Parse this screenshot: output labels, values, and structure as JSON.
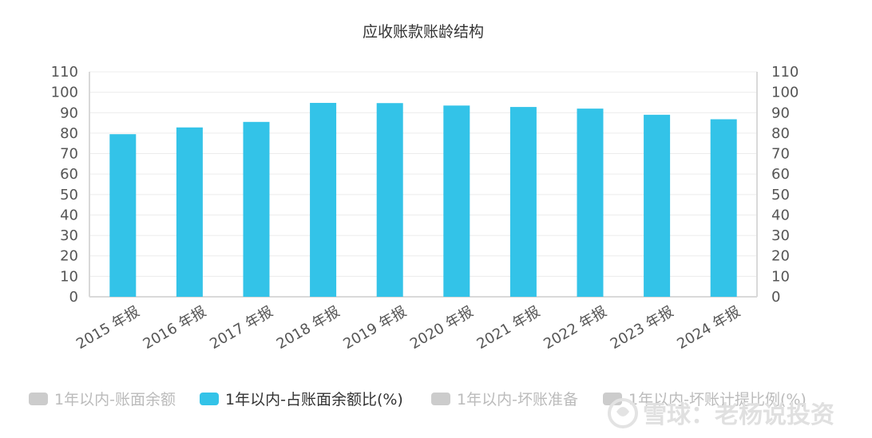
{
  "chart_data": {
    "type": "bar",
    "title": "应收账款账龄结构",
    "categories": [
      "2015 年报",
      "2016 年报",
      "2017 年报",
      "2018 年报",
      "2019 年报",
      "2020 年报",
      "2021 年报",
      "2022 年报",
      "2023 年报",
      "2024 年报"
    ],
    "series": [
      {
        "name": "1年以内-占账面余额比(%)",
        "values": [
          79.5,
          82.8,
          85.5,
          94.8,
          94.7,
          93.5,
          92.8,
          92.0,
          89.0,
          86.8
        ]
      }
    ],
    "ylim": [
      0,
      110
    ],
    "yticks": [
      "0",
      "10",
      "20",
      "30",
      "40",
      "50",
      "60",
      "70",
      "80",
      "90",
      "100",
      "110"
    ],
    "grid": true,
    "legend_position": "bottom",
    "colors": {
      "bar": "#33c3e8",
      "axis": "#d9d9d9",
      "grid": "#ececec",
      "legend_inactive": "#cccccc",
      "legend_active_text": "#333333",
      "legend_inactive_text": "#bbbbbb"
    }
  },
  "legend": [
    {
      "label": "1年以内-账面余额",
      "active": false
    },
    {
      "label": "1年以内-占账面余额比(%)",
      "active": true
    },
    {
      "label": "1年以内-坏账准备",
      "active": false
    },
    {
      "label": "1年以内-坏账计提比例(%)",
      "active": false
    }
  ],
  "watermark": {
    "text": "雪球：老杨说投资",
    "icon": "snowball-logo-icon"
  }
}
